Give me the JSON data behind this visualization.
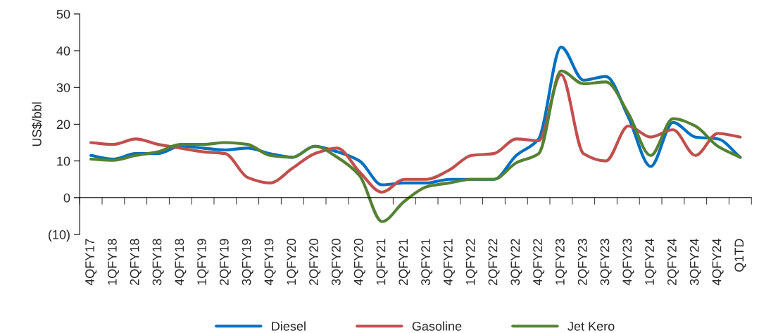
{
  "chart_data": {
    "type": "line",
    "ylabel": "US$/bbl",
    "categories": [
      "4QFY17",
      "1QFY18",
      "2QFY18",
      "3QFY18",
      "4QFY18",
      "1QFY19",
      "2QFY19",
      "3QFY19",
      "4QFY19",
      "1QFY20",
      "2QFY20",
      "3QFY20",
      "4QFY20",
      "1QFY21",
      "2QFY21",
      "3QFY21",
      "4QFY21",
      "1QFY22",
      "2QFY22",
      "3QFY22",
      "4QFY22",
      "1QFY23",
      "2QFY23",
      "3QFY23",
      "4QFY23",
      "1QFY24",
      "2QFY24",
      "3QFY24",
      "4QFY24",
      "Q1TD"
    ],
    "series": [
      {
        "name": "Diesel",
        "color": "#0070c0",
        "values": [
          11.5,
          10.5,
          12,
          12,
          14,
          13.5,
          13,
          13.5,
          12,
          11,
          14,
          12.5,
          10,
          3.5,
          4,
          4,
          5,
          5,
          5,
          11.5,
          16,
          41,
          32,
          33,
          22,
          8.5,
          20.5,
          16.5,
          16,
          11
        ]
      },
      {
        "name": "Gasoline",
        "color": "#c0504d",
        "values": [
          15,
          14.5,
          16,
          14.5,
          13.5,
          12.5,
          12,
          5.5,
          4,
          8,
          12,
          13.5,
          7,
          1.5,
          5,
          5,
          7.5,
          11.5,
          12,
          16,
          15.5,
          33.5,
          12,
          10,
          19.5,
          16.5,
          18.5,
          11.5,
          17.5,
          16.5
        ]
      },
      {
        "name": "Jet Kero",
        "color": "#548235",
        "values": [
          10.5,
          10.2,
          11.5,
          12.5,
          14.5,
          14.5,
          15,
          14.5,
          11.5,
          11,
          14,
          11,
          6,
          -6.5,
          -1,
          3,
          4,
          5,
          5,
          9.5,
          12,
          34.5,
          31,
          31.5,
          23,
          11.5,
          21.5,
          19.5,
          14,
          11
        ]
      }
    ],
    "ylim": [
      -10,
      50
    ],
    "yticks": [
      {
        "value": -10,
        "label": "(10)"
      },
      0,
      10,
      20,
      30,
      40,
      50
    ],
    "legend": "bottom"
  }
}
